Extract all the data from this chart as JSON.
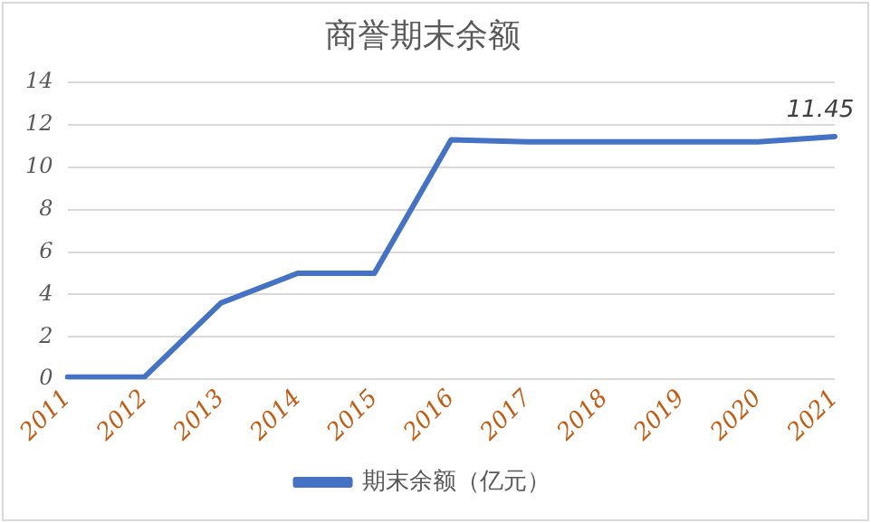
{
  "chart_data": {
    "type": "line",
    "title": "商誉期末余额",
    "categories": [
      "2011",
      "2012",
      "2013",
      "2014",
      "2015",
      "2016",
      "2017",
      "2018",
      "2019",
      "2020",
      "2021"
    ],
    "series": [
      {
        "name": "期末余额（亿元）",
        "color": "#4472c4",
        "values": [
          0.1,
          0.1,
          3.6,
          5.0,
          5.0,
          11.3,
          11.2,
          11.2,
          11.2,
          11.2,
          11.45
        ],
        "value_labels": [
          null,
          null,
          null,
          null,
          null,
          null,
          null,
          null,
          null,
          null,
          "11.45"
        ]
      }
    ],
    "ylim": [
      0,
      14
    ],
    "yticks": [
      0,
      2,
      4,
      6,
      8,
      10,
      12,
      14
    ],
    "grid": "y",
    "legend": "bottom",
    "marker": "none",
    "line_style": "solid"
  }
}
